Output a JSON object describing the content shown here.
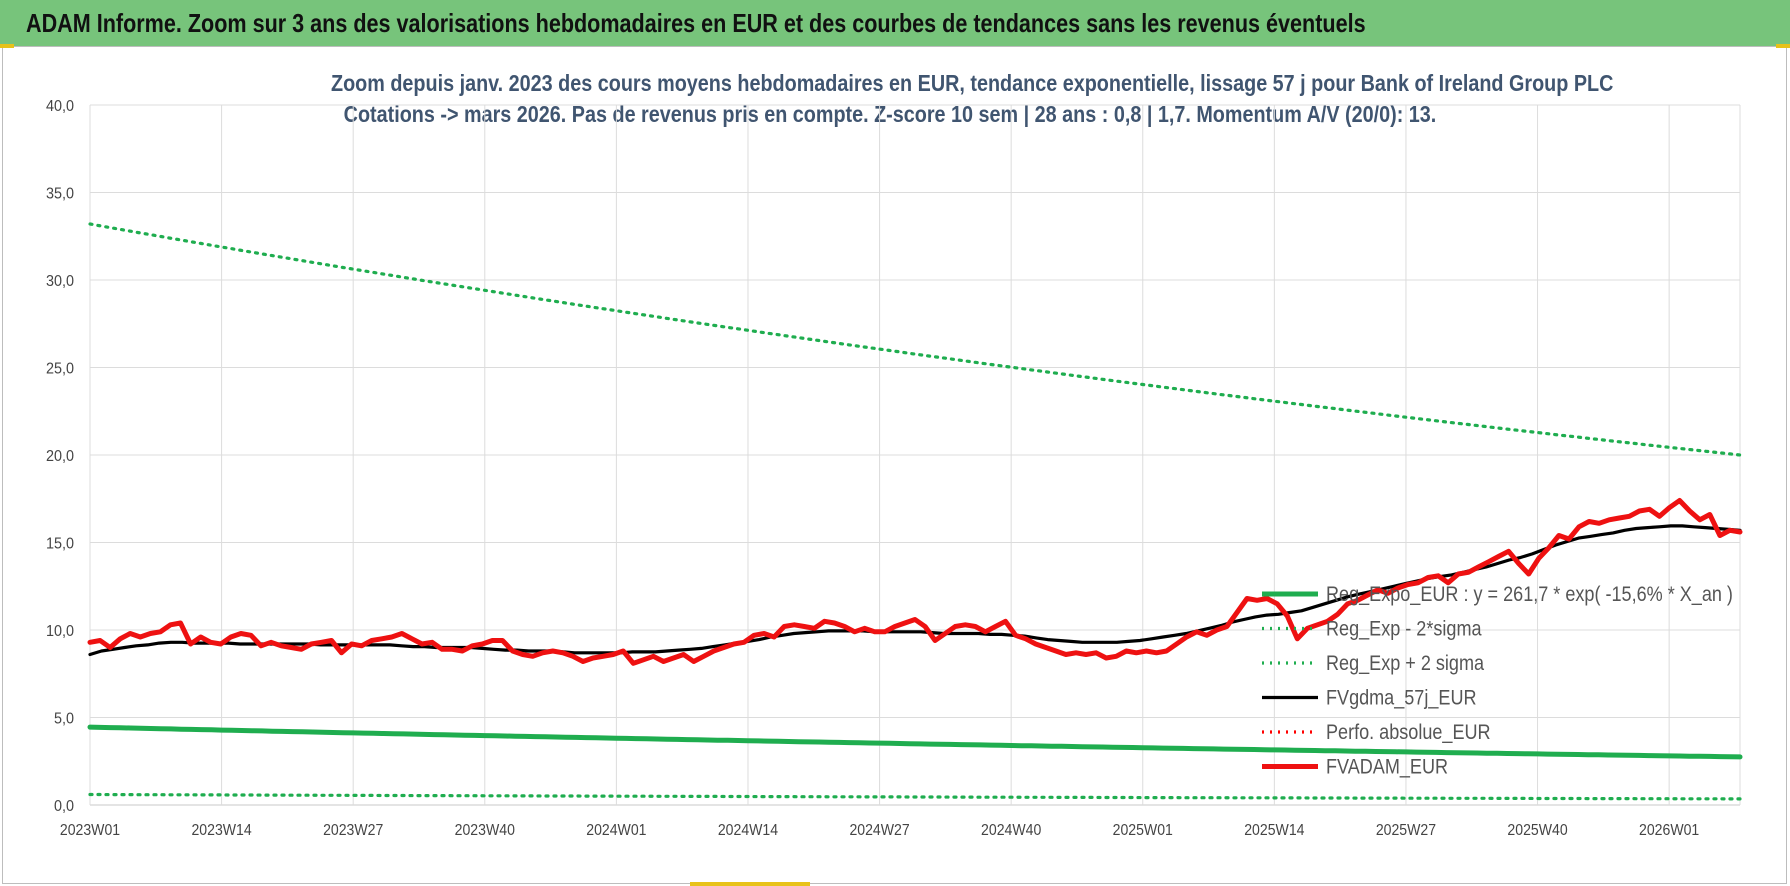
{
  "header": {
    "title": "ADAM Informe. Zoom sur 3 ans des valorisations hebdomadaires en EUR et des courbes de tendances sans les revenus éventuels"
  },
  "chart_data": {
    "type": "line",
    "title_lines": [
      "Zoom depuis janv. 2023 des cours moyens hebdomadaires en EUR, tendance exponentielle, lissage 57 j pour Bank of Ireland Group PLC",
      "Cotations -> mars 2026. Pas de revenus pris en compte. Z-score 10 sem | 28 ans : 0,8 | 1,7. Momentum A/V (20/0): 13."
    ],
    "x_tick_labels": [
      "2023W01",
      "2023W14",
      "2023W27",
      "2023W40",
      "2024W01",
      "2024W14",
      "2024W27",
      "2024W40",
      "2025W01",
      "2025W14",
      "2025W27",
      "2025W40",
      "2026W01"
    ],
    "y_tick_labels": [
      "0,0",
      "5,0",
      "10,0",
      "15,0",
      "20,0",
      "25,0",
      "30,0",
      "35,0",
      "40,0"
    ],
    "ylim": [
      0,
      40
    ],
    "grid": true,
    "legend_position": "bottom-right",
    "series": [
      {
        "name": "Reg_Expo_EUR : y = 261,7 * exp( -15,6% * X_an )",
        "color": "#1fad4f",
        "style": "solid-thick",
        "start": 4.45,
        "end": 2.75
      },
      {
        "name": "Reg_Exp - 2*sigma",
        "color": "#1fad4f",
        "style": "dotted",
        "start": 0.6,
        "end": 0.35
      },
      {
        "name": "Reg_Exp + 2 sigma",
        "color": "#1fad4f",
        "style": "dotted",
        "start": 33.2,
        "end": 20.0
      },
      {
        "name": "FVgdma_57j_EUR",
        "color": "#000000",
        "style": "solid",
        "values": [
          8.6,
          8.8,
          8.9,
          9.0,
          9.1,
          9.15,
          9.25,
          9.3,
          9.3,
          9.25,
          9.25,
          9.25,
          9.25,
          9.2,
          9.2,
          9.2,
          9.2,
          9.2,
          9.2,
          9.2,
          9.15,
          9.15,
          9.15,
          9.15,
          9.15,
          9.15,
          9.15,
          9.1,
          9.05,
          9.05,
          9.0,
          9.0,
          9.0,
          9.0,
          8.95,
          8.9,
          8.85,
          8.85,
          8.8,
          8.8,
          8.8,
          8.75,
          8.7,
          8.7,
          8.7,
          8.7,
          8.7,
          8.75,
          8.75,
          8.75,
          8.8,
          8.85,
          8.9,
          8.95,
          9.05,
          9.15,
          9.25,
          9.35,
          9.45,
          9.6,
          9.7,
          9.8,
          9.85,
          9.9,
          9.95,
          9.95,
          9.95,
          9.95,
          9.9,
          9.9,
          9.9,
          9.9,
          9.9,
          9.85,
          9.8,
          9.8,
          9.8,
          9.8,
          9.75,
          9.75,
          9.7,
          9.65,
          9.55,
          9.45,
          9.4,
          9.35,
          9.3,
          9.3,
          9.3,
          9.3,
          9.35,
          9.4,
          9.5,
          9.6,
          9.7,
          9.8,
          9.95,
          10.1,
          10.25,
          10.45,
          10.6,
          10.75,
          10.85,
          10.9,
          11.0,
          11.1,
          11.3,
          11.5,
          11.7,
          11.9,
          12.05,
          12.2,
          12.35,
          12.5,
          12.65,
          12.8,
          12.95,
          13.05,
          13.15,
          13.3,
          13.45,
          13.6,
          13.8,
          14.0,
          14.15,
          14.35,
          14.6,
          14.85,
          15.05,
          15.25,
          15.35,
          15.45,
          15.55,
          15.7,
          15.8,
          15.85,
          15.9,
          15.95,
          15.95,
          15.9,
          15.85,
          15.8,
          15.75,
          15.7
        ]
      },
      {
        "name": "Perfo. absolue_EUR",
        "color": "#ff0000",
        "style": "dotted",
        "values": []
      },
      {
        "name": "FVADAM_EUR",
        "color": "#ee1111",
        "style": "solid-thick",
        "values": [
          9.3,
          9.4,
          9.0,
          9.5,
          9.8,
          9.6,
          9.8,
          9.9,
          10.3,
          10.4,
          9.2,
          9.6,
          9.3,
          9.2,
          9.6,
          9.8,
          9.7,
          9.1,
          9.3,
          9.1,
          9.0,
          8.9,
          9.2,
          9.3,
          9.4,
          8.7,
          9.2,
          9.1,
          9.4,
          9.5,
          9.6,
          9.8,
          9.5,
          9.2,
          9.3,
          8.9,
          8.9,
          8.8,
          9.1,
          9.2,
          9.4,
          9.4,
          8.8,
          8.6,
          8.5,
          8.7,
          8.8,
          8.7,
          8.5,
          8.2,
          8.4,
          8.5,
          8.6,
          8.8,
          8.1,
          8.3,
          8.5,
          8.2,
          8.4,
          8.6,
          8.2,
          8.5,
          8.8,
          9.0,
          9.2,
          9.3,
          9.7,
          9.8,
          9.6,
          10.2,
          10.3,
          10.2,
          10.1,
          10.5,
          10.4,
          10.2,
          9.9,
          10.1,
          9.9,
          9.9,
          10.2,
          10.4,
          10.6,
          10.2,
          9.4,
          9.8,
          10.2,
          10.3,
          10.2,
          9.9,
          10.2,
          10.5,
          9.7,
          9.5,
          9.2,
          9.0,
          8.8,
          8.6,
          8.7,
          8.6,
          8.7,
          8.4,
          8.5,
          8.8,
          8.7,
          8.8,
          8.7,
          8.8,
          9.2,
          9.6,
          9.9,
          9.7,
          10.0,
          10.2,
          11.0,
          11.8,
          11.7,
          11.8,
          11.5,
          10.8,
          9.5,
          10.1,
          10.3,
          10.5,
          10.9,
          11.5,
          11.7,
          12.0,
          12.3,
          12.1,
          12.4,
          12.6,
          12.7,
          13.0,
          13.1,
          12.7,
          13.2,
          13.3,
          13.6,
          13.9,
          14.2,
          14.5,
          13.8,
          13.2,
          14.1,
          14.7,
          15.4,
          15.2,
          15.9,
          16.2,
          16.1,
          16.3,
          16.4,
          16.5,
          16.8,
          16.9,
          16.5,
          17.0,
          17.4,
          16.8,
          16.3,
          16.6,
          15.4,
          15.7,
          15.6
        ]
      }
    ]
  }
}
